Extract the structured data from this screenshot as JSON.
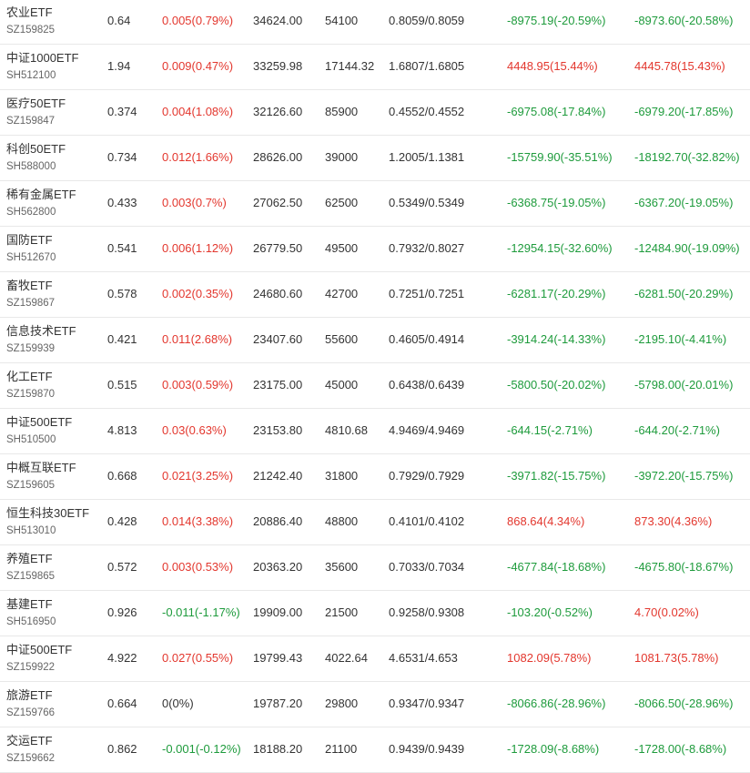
{
  "colors": {
    "up": "#e3372e",
    "down": "#1e9b3c",
    "flat": "#333333"
  },
  "rows": [
    {
      "name": "农业ETF",
      "code": "SZ159825",
      "price": "0.64",
      "change": "0.005(0.79%)",
      "change_dir": "up",
      "market_value": "34624.00",
      "quantity": "54100",
      "cost": "0.8059/0.8059",
      "pl1": "-8975.19(-20.59%)",
      "pl1_dir": "down",
      "pl2": "-8973.60(-20.58%)",
      "pl2_dir": "down"
    },
    {
      "name": "中证1000ETF",
      "code": "SH512100",
      "price": "1.94",
      "change": "0.009(0.47%)",
      "change_dir": "up",
      "market_value": "33259.98",
      "quantity": "17144.32",
      "cost": "1.6807/1.6805",
      "pl1": "4448.95(15.44%)",
      "pl1_dir": "up",
      "pl2": "4445.78(15.43%)",
      "pl2_dir": "up"
    },
    {
      "name": "医疗50ETF",
      "code": "SZ159847",
      "price": "0.374",
      "change": "0.004(1.08%)",
      "change_dir": "up",
      "market_value": "32126.60",
      "quantity": "85900",
      "cost": "0.4552/0.4552",
      "pl1": "-6975.08(-17.84%)",
      "pl1_dir": "down",
      "pl2": "-6979.20(-17.85%)",
      "pl2_dir": "down"
    },
    {
      "name": "科创50ETF",
      "code": "SH588000",
      "price": "0.734",
      "change": "0.012(1.66%)",
      "change_dir": "up",
      "market_value": "28626.00",
      "quantity": "39000",
      "cost": "1.2005/1.1381",
      "pl1": "-15759.90(-35.51%)",
      "pl1_dir": "down",
      "pl2": "-18192.70(-32.82%)",
      "pl2_dir": "down"
    },
    {
      "name": "稀有金属ETF",
      "code": "SH562800",
      "price": "0.433",
      "change": "0.003(0.7%)",
      "change_dir": "up",
      "market_value": "27062.50",
      "quantity": "62500",
      "cost": "0.5349/0.5349",
      "pl1": "-6368.75(-19.05%)",
      "pl1_dir": "down",
      "pl2": "-6367.20(-19.05%)",
      "pl2_dir": "down"
    },
    {
      "name": "国防ETF",
      "code": "SH512670",
      "price": "0.541",
      "change": "0.006(1.12%)",
      "change_dir": "up",
      "market_value": "26779.50",
      "quantity": "49500",
      "cost": "0.7932/0.8027",
      "pl1": "-12954.15(-32.60%)",
      "pl1_dir": "down",
      "pl2": "-12484.90(-19.09%)",
      "pl2_dir": "down"
    },
    {
      "name": "畜牧ETF",
      "code": "SZ159867",
      "price": "0.578",
      "change": "0.002(0.35%)",
      "change_dir": "up",
      "market_value": "24680.60",
      "quantity": "42700",
      "cost": "0.7251/0.7251",
      "pl1": "-6281.17(-20.29%)",
      "pl1_dir": "down",
      "pl2": "-6281.50(-20.29%)",
      "pl2_dir": "down"
    },
    {
      "name": "信息技术ETF",
      "code": "SZ159939",
      "price": "0.421",
      "change": "0.011(2.68%)",
      "change_dir": "up",
      "market_value": "23407.60",
      "quantity": "55600",
      "cost": "0.4605/0.4914",
      "pl1": "-3914.24(-14.33%)",
      "pl1_dir": "down",
      "pl2": "-2195.10(-4.41%)",
      "pl2_dir": "down"
    },
    {
      "name": "化工ETF",
      "code": "SZ159870",
      "price": "0.515",
      "change": "0.003(0.59%)",
      "change_dir": "up",
      "market_value": "23175.00",
      "quantity": "45000",
      "cost": "0.6438/0.6439",
      "pl1": "-5800.50(-20.02%)",
      "pl1_dir": "down",
      "pl2": "-5798.00(-20.01%)",
      "pl2_dir": "down"
    },
    {
      "name": "中证500ETF",
      "code": "SH510500",
      "price": "4.813",
      "change": "0.03(0.63%)",
      "change_dir": "up",
      "market_value": "23153.80",
      "quantity": "4810.68",
      "cost": "4.9469/4.9469",
      "pl1": "-644.15(-2.71%)",
      "pl1_dir": "down",
      "pl2": "-644.20(-2.71%)",
      "pl2_dir": "down"
    },
    {
      "name": "中概互联ETF",
      "code": "SZ159605",
      "price": "0.668",
      "change": "0.021(3.25%)",
      "change_dir": "up",
      "market_value": "21242.40",
      "quantity": "31800",
      "cost": "0.7929/0.7929",
      "pl1": "-3971.82(-15.75%)",
      "pl1_dir": "down",
      "pl2": "-3972.20(-15.75%)",
      "pl2_dir": "down"
    },
    {
      "name": "恒生科技30ETF",
      "code": "SH513010",
      "price": "0.428",
      "change": "0.014(3.38%)",
      "change_dir": "up",
      "market_value": "20886.40",
      "quantity": "48800",
      "cost": "0.4101/0.4102",
      "pl1": "868.64(4.34%)",
      "pl1_dir": "up",
      "pl2": "873.30(4.36%)",
      "pl2_dir": "up"
    },
    {
      "name": "养殖ETF",
      "code": "SZ159865",
      "price": "0.572",
      "change": "0.003(0.53%)",
      "change_dir": "up",
      "market_value": "20363.20",
      "quantity": "35600",
      "cost": "0.7033/0.7034",
      "pl1": "-4677.84(-18.68%)",
      "pl1_dir": "down",
      "pl2": "-4675.80(-18.67%)",
      "pl2_dir": "down"
    },
    {
      "name": "基建ETF",
      "code": "SH516950",
      "price": "0.926",
      "change": "-0.011(-1.17%)",
      "change_dir": "down",
      "market_value": "19909.00",
      "quantity": "21500",
      "cost": "0.9258/0.9308",
      "pl1": "-103.20(-0.52%)",
      "pl1_dir": "down",
      "pl2": "4.70(0.02%)",
      "pl2_dir": "up"
    },
    {
      "name": "中证500ETF",
      "code": "SZ159922",
      "price": "4.922",
      "change": "0.027(0.55%)",
      "change_dir": "up",
      "market_value": "19799.43",
      "quantity": "4022.64",
      "cost": "4.6531/4.653",
      "pl1": "1082.09(5.78%)",
      "pl1_dir": "up",
      "pl2": "1081.73(5.78%)",
      "pl2_dir": "up"
    },
    {
      "name": "旅游ETF",
      "code": "SZ159766",
      "price": "0.664",
      "change": "0(0%)",
      "change_dir": "flat",
      "market_value": "19787.20",
      "quantity": "29800",
      "cost": "0.9347/0.9347",
      "pl1": "-8066.86(-28.96%)",
      "pl1_dir": "down",
      "pl2": "-8066.50(-28.96%)",
      "pl2_dir": "down"
    },
    {
      "name": "交运ETF",
      "code": "SZ159662",
      "price": "0.862",
      "change": "-0.001(-0.12%)",
      "change_dir": "down",
      "market_value": "18188.20",
      "quantity": "21100",
      "cost": "0.9439/0.9439",
      "pl1": "-1728.09(-8.68%)",
      "pl1_dir": "down",
      "pl2": "-1728.00(-8.68%)",
      "pl2_dir": "down"
    }
  ]
}
